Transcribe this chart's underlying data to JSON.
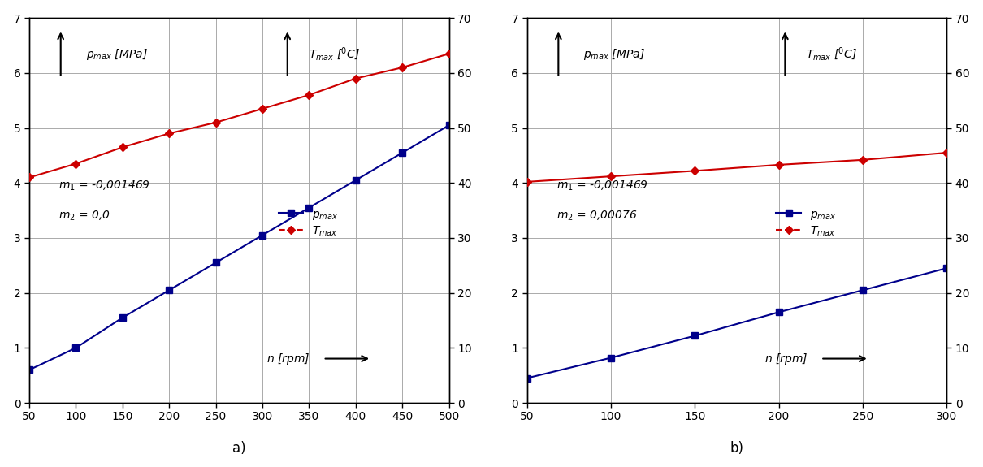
{
  "plot_a": {
    "x": [
      50,
      100,
      150,
      200,
      250,
      300,
      350,
      400,
      450,
      500
    ],
    "p_max": [
      0.6,
      1.0,
      1.55,
      2.05,
      2.55,
      3.05,
      3.55,
      4.05,
      4.55,
      5.05
    ],
    "T_max": [
      41,
      43.5,
      46.5,
      49.0,
      51.0,
      53.5,
      56.0,
      59.0,
      61.0,
      63.5
    ],
    "label_m1": "$m_1$ = -0,001469",
    "label_m2": "$m_2$ = 0,0",
    "xlim": [
      50,
      500
    ],
    "ylim_left": [
      0,
      7
    ],
    "ylim_right": [
      0,
      70
    ],
    "xticks": [
      50,
      100,
      150,
      200,
      250,
      300,
      350,
      400,
      450,
      500
    ],
    "yticks_left": [
      0,
      1,
      2,
      3,
      4,
      5,
      6,
      7
    ],
    "yticks_right": [
      0,
      10,
      20,
      30,
      40,
      50,
      60,
      70
    ],
    "sublabel": "a)"
  },
  "plot_b": {
    "x": [
      50,
      100,
      150,
      200,
      250,
      300
    ],
    "p_max": [
      0.45,
      0.82,
      1.22,
      1.65,
      2.05,
      2.45
    ],
    "T_max": [
      40.2,
      41.2,
      42.2,
      43.3,
      44.2,
      45.5
    ],
    "label_m1": "$m_1$ = -0,001469",
    "label_m2": "$m_2$ = 0,00076",
    "xlim": [
      50,
      300
    ],
    "ylim_left": [
      0,
      7
    ],
    "ylim_right": [
      0,
      70
    ],
    "xticks": [
      50,
      100,
      150,
      200,
      250,
      300
    ],
    "yticks_left": [
      0,
      1,
      2,
      3,
      4,
      5,
      6,
      7
    ],
    "yticks_right": [
      0,
      10,
      20,
      30,
      40,
      50,
      60,
      70
    ],
    "sublabel": "b)"
  },
  "blue_color": "#00008B",
  "red_color": "#CC0000",
  "background_color": "#ffffff",
  "grid_color": "#aaaaaa",
  "fontsize_tick": 10,
  "fontsize_label": 10,
  "fontsize_annot": 10,
  "fontsize_sublabel": 12
}
